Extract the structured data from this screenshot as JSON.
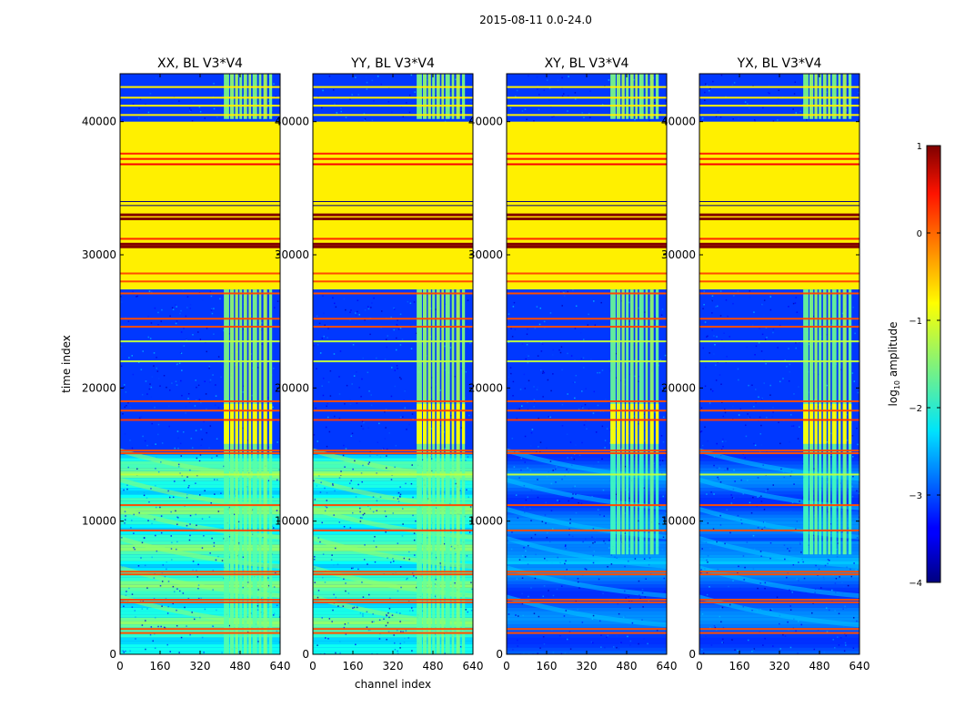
{
  "suptitle": "2015-08-11 0.0-24.0",
  "chart_data": [
    {
      "type": "heatmap",
      "title": "XX, BL V3*V4",
      "xlabel": "",
      "ylabel": "time index",
      "xlim": [
        0,
        640
      ],
      "ylim": [
        0,
        43600
      ],
      "xticks": [
        0,
        160,
        320,
        480,
        640
      ],
      "yticks": [
        0,
        10000,
        20000,
        30000,
        40000
      ],
      "cross_hand": false
    },
    {
      "type": "heatmap",
      "title": "YY, BL V3*V4",
      "xlabel": "channel index",
      "ylabel": "",
      "xlim": [
        0,
        640
      ],
      "ylim": [
        0,
        43600
      ],
      "xticks": [
        0,
        160,
        320,
        480,
        640
      ],
      "yticks": [
        0,
        10000,
        20000,
        30000,
        40000
      ],
      "cross_hand": false
    },
    {
      "type": "heatmap",
      "title": "XY, BL V3*V4",
      "xlabel": "",
      "ylabel": "",
      "xlim": [
        0,
        640
      ],
      "ylim": [
        0,
        43600
      ],
      "xticks": [
        0,
        160,
        320,
        480,
        640
      ],
      "yticks": [
        0,
        10000,
        20000,
        30000,
        40000
      ],
      "cross_hand": true
    },
    {
      "type": "heatmap",
      "title": "YX, BL V3*V4",
      "xlabel": "",
      "ylabel": "",
      "xlim": [
        0,
        640
      ],
      "ylim": [
        0,
        43600
      ],
      "xticks": [
        0,
        160,
        320,
        480,
        640
      ],
      "yticks": [
        0,
        10000,
        20000,
        30000,
        40000
      ],
      "cross_hand": true
    }
  ],
  "regions": {
    "flagged_block": [
      27400,
      40000
    ],
    "high_rfi_block": [
      15000,
      27400
    ],
    "rfi_channels": [
      [
        415,
        436
      ],
      [
        440,
        455
      ],
      [
        460,
        472
      ],
      [
        477,
        488
      ],
      [
        494,
        508
      ],
      [
        514,
        524
      ],
      [
        530,
        548
      ],
      [
        555,
        565
      ],
      [
        573,
        588
      ],
      [
        596,
        608
      ]
    ]
  },
  "horizontal_lines": [
    {
      "y": 33000,
      "level": 1.0
    },
    {
      "y": 32700,
      "level": 1.0
    },
    {
      "y": 30800,
      "level": 1.0
    },
    {
      "y": 30600,
      "level": 1.0
    },
    {
      "y": 37600,
      "level": 0.2
    },
    {
      "y": 37200,
      "level": 0.3
    },
    {
      "y": 36800,
      "level": 0.4
    },
    {
      "y": 31200,
      "level": 0.2
    },
    {
      "y": 28600,
      "level": 0.0
    },
    {
      "y": 28000,
      "level": 0.0
    },
    {
      "y": 27100,
      "level": 0.0
    },
    {
      "y": 25200,
      "level": 0.0
    },
    {
      "y": 24600,
      "level": 0.0
    },
    {
      "y": 19000,
      "level": 0.0
    },
    {
      "y": 18300,
      "level": 0.0
    },
    {
      "y": 17600,
      "level": 0.1
    },
    {
      "y": 15300,
      "level": 0.0
    },
    {
      "y": 15100,
      "level": 0.0
    },
    {
      "y": 11200,
      "level": 0.0
    },
    {
      "y": 9300,
      "level": 0.0
    },
    {
      "y": 6200,
      "level": 0.0
    },
    {
      "y": 6000,
      "level": 0.0
    },
    {
      "y": 4100,
      "level": 0.0
    },
    {
      "y": 3900,
      "level": 0.0
    },
    {
      "y": 1900,
      "level": 0.0
    },
    {
      "y": 1600,
      "level": 0.0
    },
    {
      "y": 42600,
      "level": -0.8
    },
    {
      "y": 41800,
      "level": -0.8
    },
    {
      "y": 41200,
      "level": -0.8
    },
    {
      "y": 40500,
      "level": -0.8
    },
    {
      "y": 34000,
      "level": -4.0
    },
    {
      "y": 33700,
      "level": -4.0
    },
    {
      "y": 13500,
      "level": -1.2
    },
    {
      "y": 22000,
      "level": -1.2
    },
    {
      "y": 23500,
      "level": -1.2
    }
  ],
  "colorbar": {
    "label_main": "log",
    "label_sub": "10",
    "label_tail": " amplitude",
    "vmin": -4,
    "vmax": 1,
    "ticks": [
      1,
      0,
      -1,
      -2,
      -3,
      -4
    ],
    "tick_labels": [
      "1",
      "0",
      "−1",
      "−2",
      "−3",
      "−4"
    ],
    "colormap": "jet"
  }
}
